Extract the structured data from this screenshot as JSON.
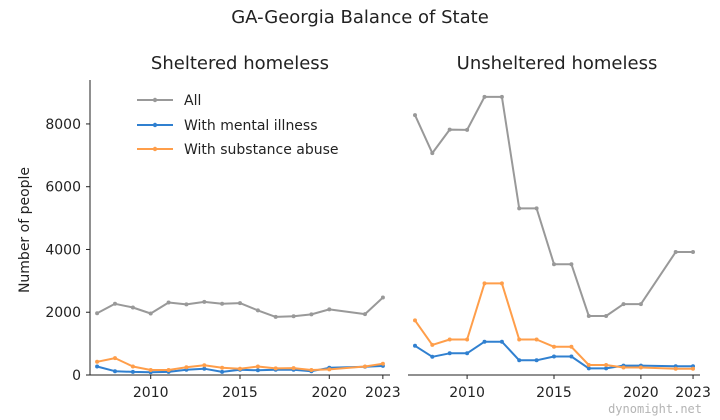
{
  "chart_data": {
    "type": "line",
    "title": "GA-Georgia Balance of State",
    "ylabel": "Number of people",
    "ylim": [
      0,
      9400
    ],
    "yticks": [
      0,
      2000,
      4000,
      6000,
      8000
    ],
    "xlim": [
      2006.6,
      2023.4
    ],
    "xticks": [
      2010,
      2015,
      2020,
      2023
    ],
    "x": [
      2007,
      2008,
      2009,
      2010,
      2011,
      2012,
      2013,
      2014,
      2015,
      2016,
      2017,
      2018,
      2019,
      2020,
      2022,
      2023
    ],
    "legend": [
      "All",
      "With mental illness",
      "With substance abuse"
    ],
    "legend_position": "top-right of left panel",
    "colors": {
      "all": "#999999",
      "mental": "#3080d0",
      "substance": "#ff9e4a"
    },
    "panels": [
      {
        "title": "Sheltered homeless",
        "series": [
          {
            "name": "All",
            "values": [
              1970,
              2270,
              2150,
              1960,
              2310,
              2250,
              2330,
              2270,
              2290,
              2060,
              1850,
              1870,
              1930,
              2090,
              1940,
              2470
            ]
          },
          {
            "name": "With mental illness",
            "values": [
              270,
              120,
              100,
              90,
              100,
              170,
              200,
              100,
              170,
              150,
              170,
              170,
              120,
              230,
              260,
              290
            ]
          },
          {
            "name": "With substance abuse",
            "values": [
              420,
              540,
              270,
              160,
              160,
              250,
              310,
              230,
              200,
              270,
              210,
              220,
              160,
              180,
              270,
              360
            ]
          }
        ]
      },
      {
        "title": "Unsheltered homeless",
        "series": [
          {
            "name": "All",
            "values": [
              8280,
              7070,
              7820,
              7810,
              8860,
              8860,
              5310,
              5310,
              3530,
              3530,
              1880,
              1880,
              2260,
              2260,
              3920,
              3920
            ]
          },
          {
            "name": "With mental illness",
            "values": [
              930,
              580,
              690,
              690,
              1060,
              1060,
              470,
              470,
              590,
              590,
              210,
              210,
              300,
              300,
              280,
              280
            ]
          },
          {
            "name": "With substance abuse",
            "values": [
              1740,
              960,
              1130,
              1130,
              2920,
              2920,
              1130,
              1130,
              900,
              900,
              320,
              320,
              240,
              240,
              200,
              200
            ]
          }
        ]
      }
    ]
  },
  "watermark": "dynomight.net"
}
